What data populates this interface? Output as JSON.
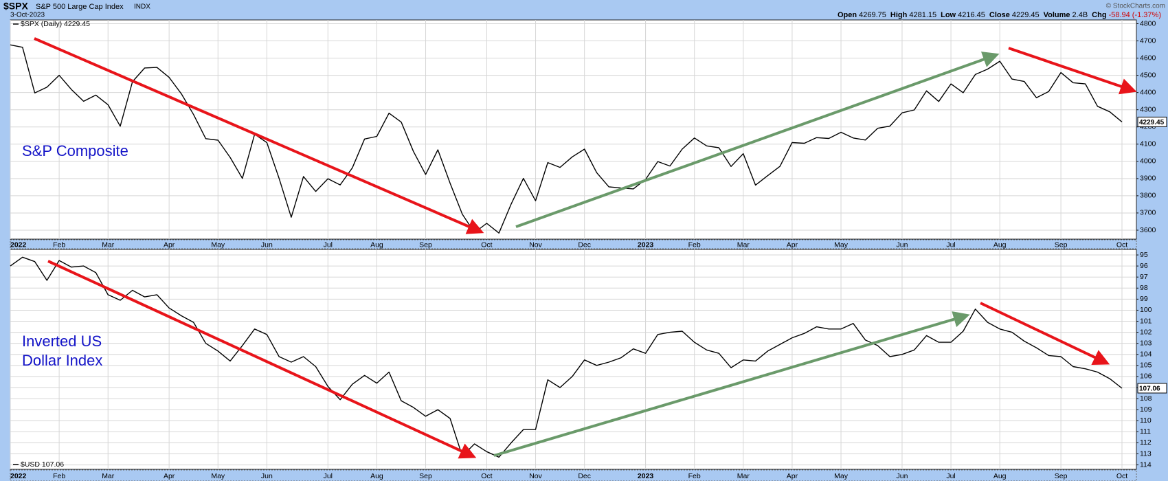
{
  "header": {
    "symbol": "$SPX",
    "name": "S&P 500 Large Cap Index",
    "exchange": "INDX",
    "date": "3-Oct-2023",
    "copyright": "© StockCharts.com",
    "quote": [
      {
        "label": "Open",
        "value": "4269.75"
      },
      {
        "label": "High",
        "value": "4281.15"
      },
      {
        "label": "Low",
        "value": "4216.45"
      },
      {
        "label": "Close",
        "value": "4229.45"
      },
      {
        "label": "Volume",
        "value": "2.4B"
      },
      {
        "label": "Chg",
        "value": "-58.94 (-1.37%)"
      }
    ]
  },
  "chart_data": [
    {
      "type": "line",
      "legend": "$SPX (Daily) 4229.45",
      "annotation": [
        "S&P Composite"
      ],
      "color": "#000000",
      "grid": true,
      "categories": [
        "2022",
        null,
        null,
        null,
        "Feb",
        null,
        null,
        null,
        "Mar",
        null,
        null,
        null,
        null,
        "Apr",
        null,
        null,
        null,
        "May",
        null,
        null,
        null,
        "Jun",
        null,
        null,
        null,
        null,
        "Jul",
        null,
        null,
        null,
        "Aug",
        null,
        null,
        null,
        "Sep",
        null,
        null,
        null,
        null,
        "Oct",
        null,
        null,
        null,
        "Nov",
        null,
        null,
        null,
        "Dec",
        null,
        null,
        null,
        null,
        "2023",
        null,
        null,
        null,
        "Feb",
        null,
        null,
        null,
        "Mar",
        null,
        null,
        null,
        "Apr",
        null,
        null,
        null,
        "May",
        null,
        null,
        null,
        null,
        "Jun",
        null,
        null,
        null,
        "Jul",
        null,
        null,
        null,
        "Aug",
        null,
        null,
        null,
        null,
        "Sep",
        null,
        null,
        null,
        null,
        "Oct"
      ],
      "values": [
        4677,
        4663,
        4398,
        4431,
        4500,
        4418,
        4349,
        4385,
        4329,
        4204,
        4463,
        4543,
        4546,
        4488,
        4393,
        4272,
        4132,
        4123,
        4023,
        3901,
        4158,
        4109,
        3901,
        3675,
        3912,
        3825,
        3899,
        3863,
        3962,
        4130,
        4145,
        4280,
        4228,
        4058,
        3924,
        4067,
        3873,
        3693,
        3586,
        3640,
        3583,
        3752,
        3901,
        3771,
        3993,
        3965,
        4026,
        4071,
        3934,
        3852,
        3845,
        3840,
        3895,
        3999,
        3973,
        4071,
        4136,
        4090,
        4079,
        3970,
        4045,
        3862,
        3917,
        3971,
        4109,
        4105,
        4138,
        4133,
        4169,
        4136,
        4124,
        4192,
        4205,
        4282,
        4299,
        4410,
        4348,
        4450,
        4399,
        4505,
        4536,
        4582,
        4478,
        4464,
        4370,
        4406,
        4516,
        4457,
        4450,
        4320,
        4288,
        4229.45
      ],
      "ylim": [
        3548,
        4822
      ],
      "yticks": [
        3600,
        3700,
        3800,
        3900,
        4000,
        4100,
        4200,
        4300,
        4400,
        4500,
        4600,
        4700,
        4800
      ]
    },
    {
      "type": "line",
      "legend": "$USD 107.06",
      "annotation": [
        "Inverted US",
        "Dollar Index"
      ],
      "color": "#000000",
      "grid": true,
      "categories": [
        "2022",
        null,
        null,
        null,
        "Feb",
        null,
        null,
        null,
        "Mar",
        null,
        null,
        null,
        null,
        "Apr",
        null,
        null,
        null,
        "May",
        null,
        null,
        null,
        "Jun",
        null,
        null,
        null,
        null,
        "Jul",
        null,
        null,
        null,
        "Aug",
        null,
        null,
        null,
        "Sep",
        null,
        null,
        null,
        null,
        "Oct",
        null,
        null,
        null,
        "Nov",
        null,
        null,
        null,
        "Dec",
        null,
        null,
        null,
        null,
        "2023",
        null,
        null,
        null,
        "Feb",
        null,
        null,
        null,
        "Mar",
        null,
        null,
        null,
        "Apr",
        null,
        null,
        null,
        "May",
        null,
        null,
        null,
        null,
        "Jun",
        null,
        null,
        null,
        "Jul",
        null,
        null,
        null,
        "Aug",
        null,
        null,
        null,
        null,
        "Sep",
        null,
        null,
        null,
        null,
        "Oct"
      ],
      "values": [
        96.0,
        95.2,
        95.6,
        97.3,
        95.5,
        96.1,
        96.0,
        96.6,
        98.6,
        99.1,
        98.2,
        98.8,
        98.6,
        99.8,
        100.5,
        101.1,
        103.0,
        103.7,
        104.6,
        103.2,
        101.7,
        102.2,
        104.2,
        104.7,
        104.2,
        105.1,
        106.9,
        108.1,
        106.7,
        105.9,
        106.6,
        105.6,
        108.2,
        108.8,
        109.6,
        109.0,
        109.8,
        113.2,
        112.1,
        112.8,
        113.3,
        112.0,
        110.8,
        110.8,
        106.3,
        107.0,
        106.0,
        104.5,
        105.0,
        104.7,
        104.3,
        103.5,
        103.9,
        102.2,
        102.0,
        101.9,
        102.9,
        103.6,
        103.9,
        105.2,
        104.5,
        104.6,
        103.7,
        103.1,
        102.5,
        102.1,
        101.5,
        101.7,
        101.7,
        101.2,
        102.7,
        103.2,
        104.2,
        104.0,
        103.6,
        102.3,
        102.9,
        102.9,
        101.9,
        99.9,
        101.1,
        101.7,
        102.0,
        102.8,
        103.4,
        104.1,
        104.2,
        105.1,
        105.3,
        105.6,
        106.2,
        107.06
      ],
      "ylim": [
        114.4,
        94.5
      ],
      "yticks": [
        95,
        96,
        97,
        98,
        99,
        100,
        101,
        102,
        103,
        104,
        105,
        106,
        107,
        108,
        109,
        110,
        111,
        112,
        113,
        114
      ]
    }
  ]
}
